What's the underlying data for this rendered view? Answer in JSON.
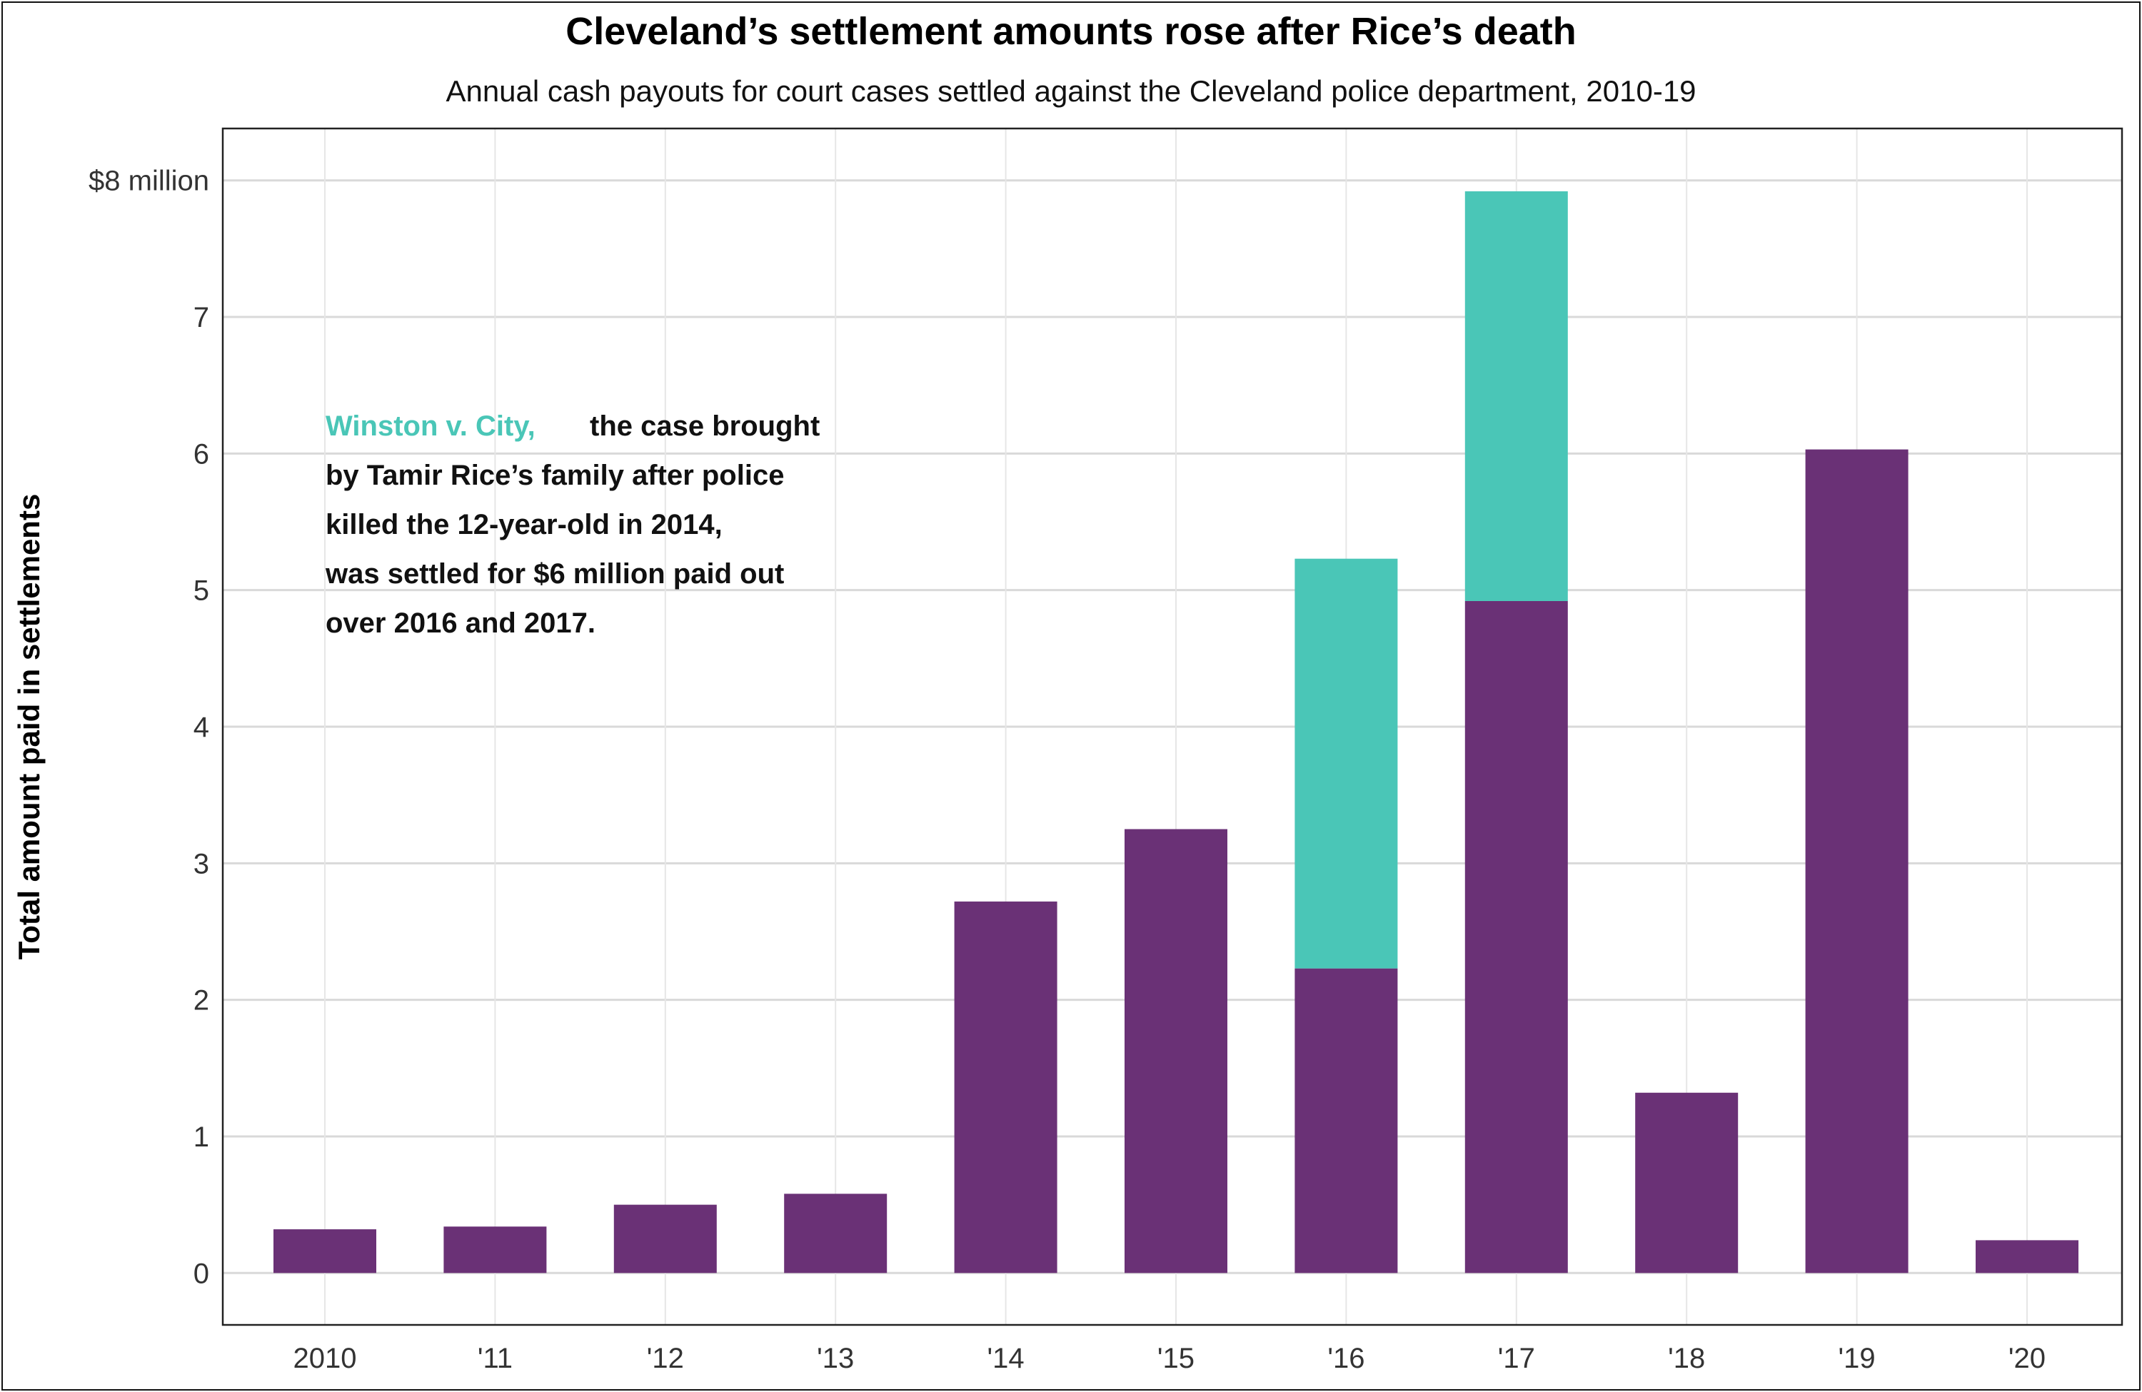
{
  "chart_data": {
    "type": "bar",
    "stacked": true,
    "title": "Cleveland’s settlement amounts rose after Rice’s death",
    "subtitle": "Annual cash payouts for court cases settled against the Cleveland police department, 2010-19",
    "xlabel": "",
    "ylabel": "Total amount paid in settlements",
    "categories": [
      "2010",
      "'11",
      "'12",
      "'13",
      "'14",
      "'15",
      "'16",
      "'17",
      "'18",
      "'19",
      "'20"
    ],
    "series": [
      {
        "values": [
          0.32,
          0.34,
          0.5,
          0.58,
          2.72,
          3.25,
          2.23,
          4.92,
          1.32,
          6.03,
          0.24
        ]
      },
      {
        "values": [
          0,
          0,
          0,
          0,
          0,
          0,
          3.0,
          3.0,
          0,
          0,
          0
        ]
      }
    ],
    "colors": {
      "other": "#6A3176",
      "winston": "#4AC6B7",
      "grid": "#D9D9D9",
      "axis": "#222222"
    },
    "ylim": [
      -0.38,
      8.38
    ],
    "yticks": [
      0,
      1,
      2,
      3,
      4,
      5,
      6,
      7,
      8
    ],
    "ytick_labels": [
      "0",
      "1",
      "2",
      "3",
      "4",
      "5",
      "6",
      "7",
      "$8 million"
    ],
    "grid": true,
    "legend": "none",
    "annotation": {
      "highlight": "Winston v. City,",
      "lines": [
        "the case brought",
        "by Tamir Rice’s family after police",
        "killed the 12-year-old in 2014,",
        "was settled for $6 million paid out",
        "over 2016 and 2017."
      ]
    }
  }
}
